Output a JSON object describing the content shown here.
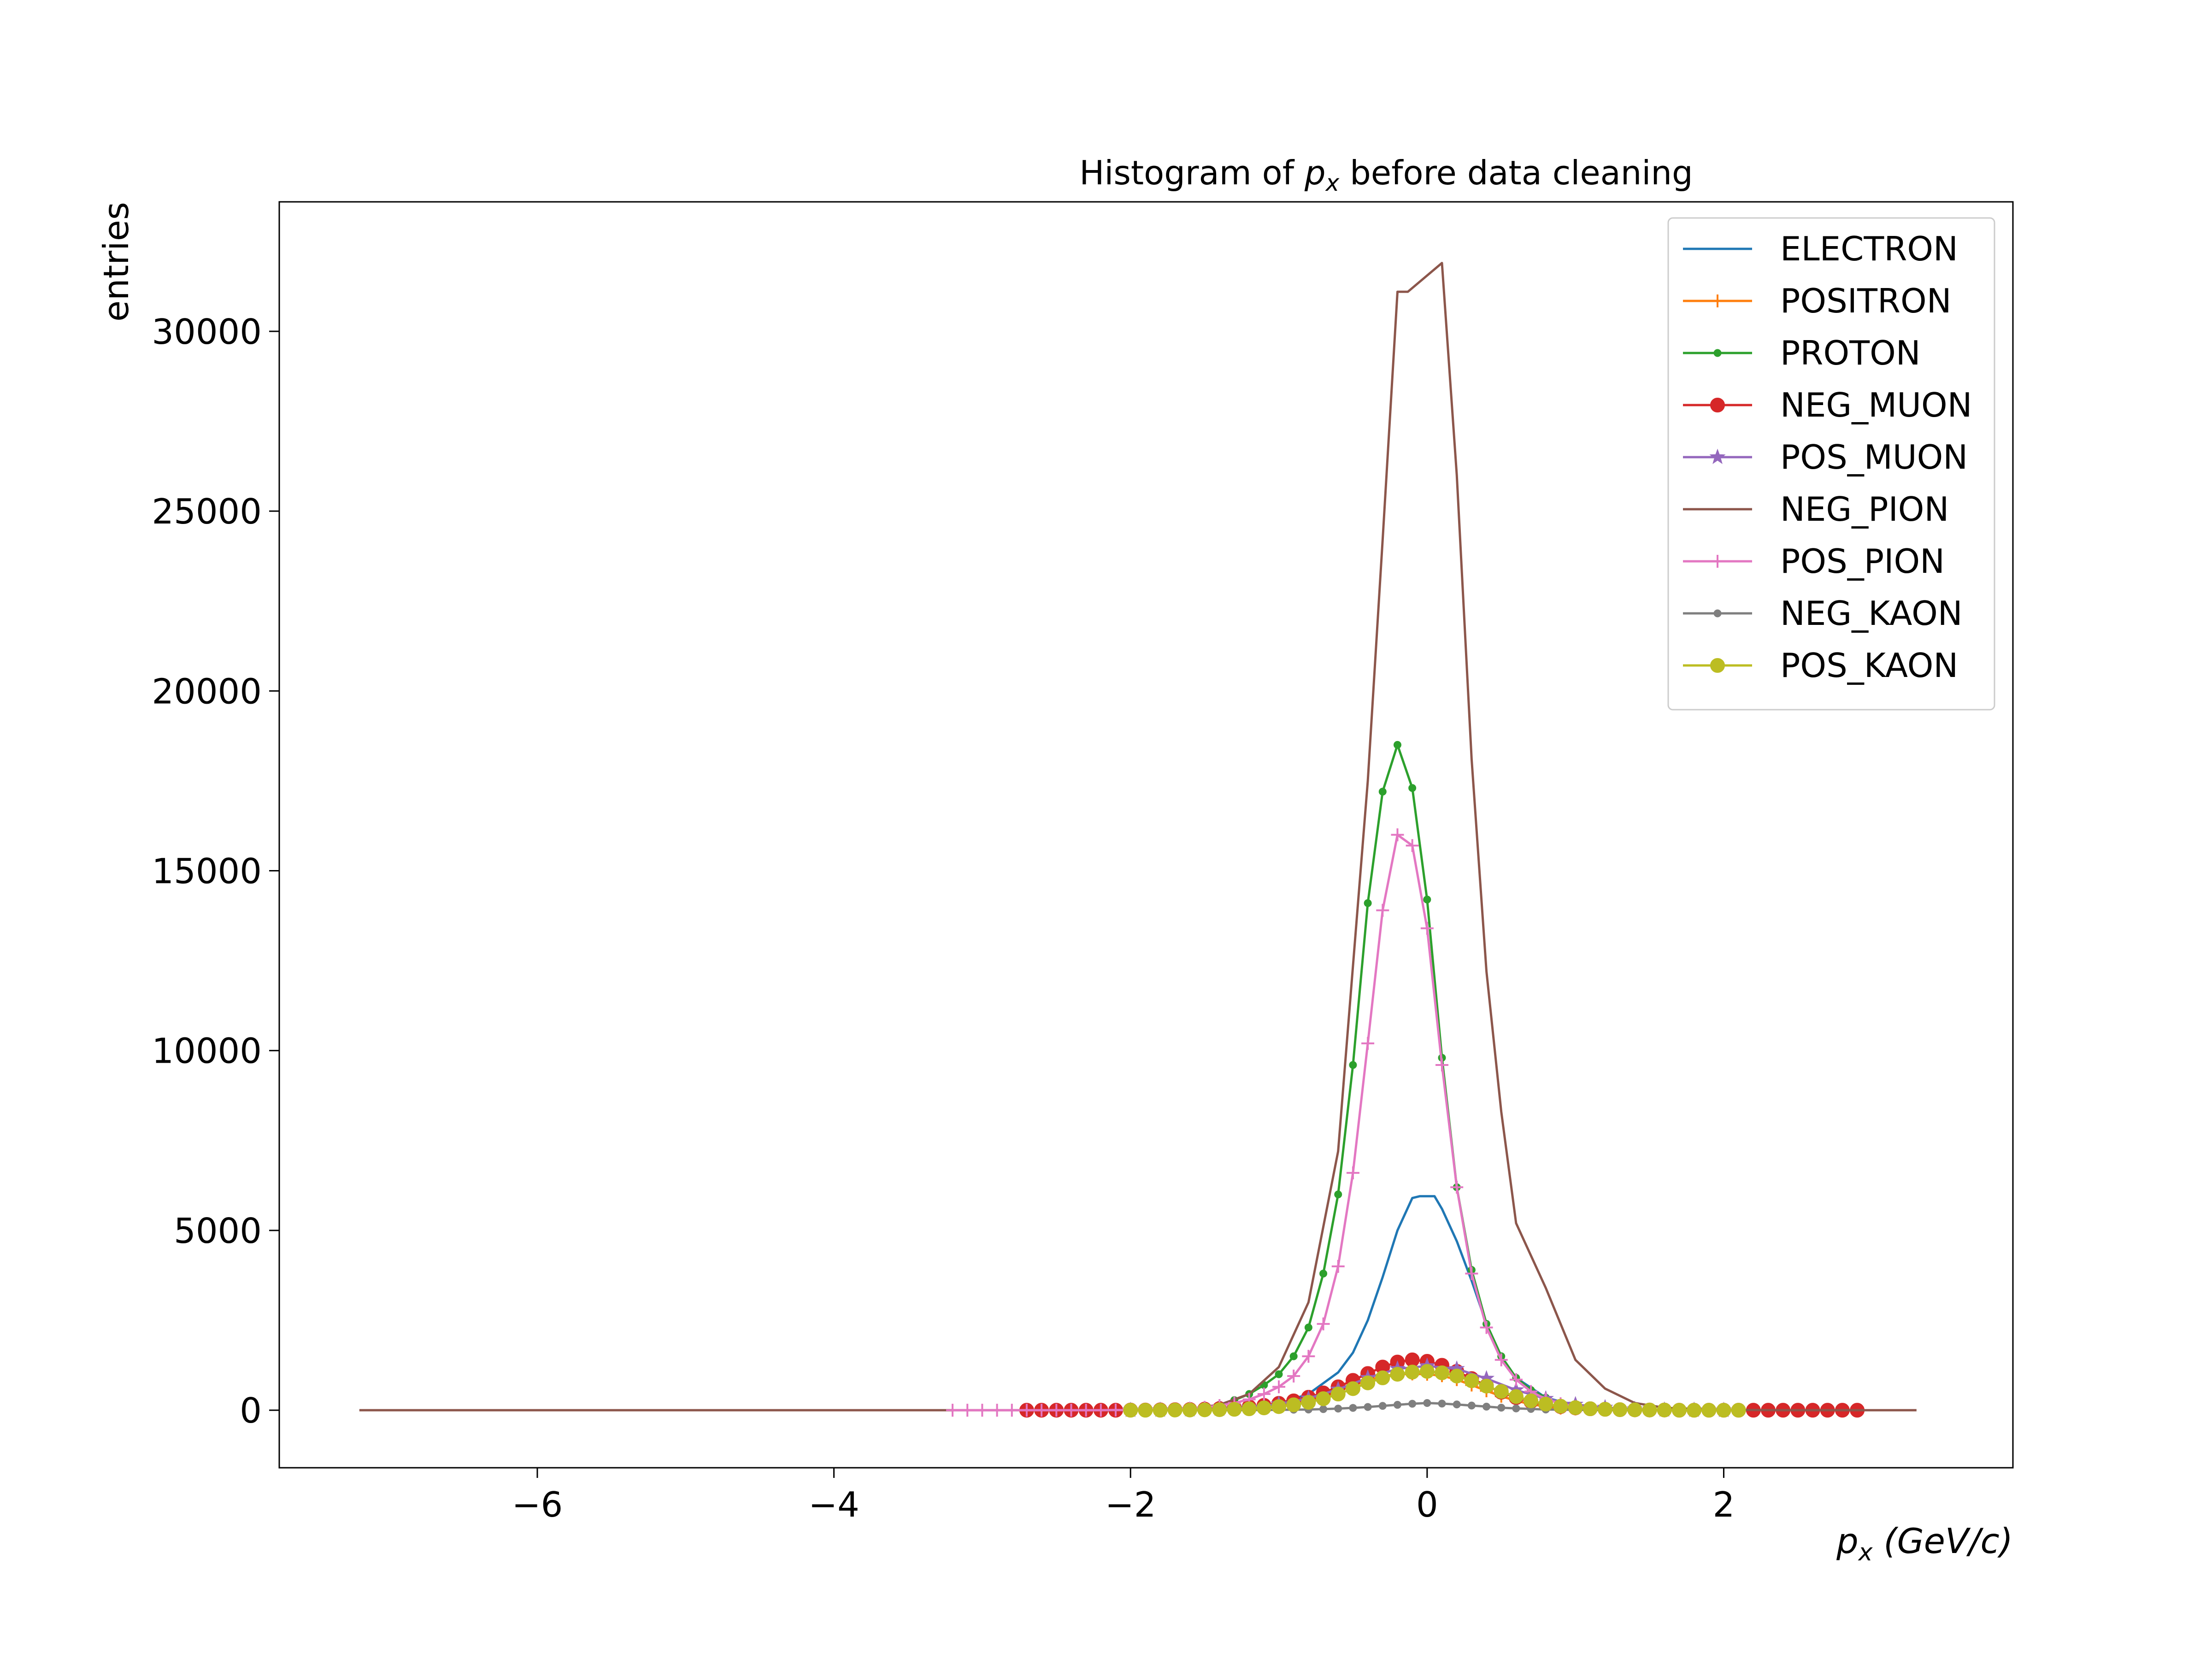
{
  "chart_data": {
    "type": "line",
    "title": {
      "prefix": "Histogram of ",
      "symbol": "p",
      "sub": "x",
      "suffix": " before data cleaning"
    },
    "xlabel": {
      "symbol": "p",
      "sub": "x",
      "unit": " (GeV/c)"
    },
    "ylabel": "entries",
    "xlim": [
      -7.74,
      3.95
    ],
    "ylim": [
      -1600,
      33600
    ],
    "xticks": [
      {
        "value": -6,
        "label": "−6"
      },
      {
        "value": -4,
        "label": "−4"
      },
      {
        "value": -2,
        "label": "−2"
      },
      {
        "value": 0,
        "label": "0"
      },
      {
        "value": 2,
        "label": "2"
      }
    ],
    "yticks": [
      {
        "value": 0,
        "label": "0"
      },
      {
        "value": 5000,
        "label": "5000"
      },
      {
        "value": 10000,
        "label": "10000"
      },
      {
        "value": 15000,
        "label": "15000"
      },
      {
        "value": 20000,
        "label": "20000"
      },
      {
        "value": 25000,
        "label": "25000"
      },
      {
        "value": 30000,
        "label": "30000"
      }
    ],
    "grid": false,
    "legend_position": "top-right",
    "series": [
      {
        "name": "ELECTRON",
        "color": "#1f77b4",
        "marker": "none",
        "x": [
          -2.0,
          -1.8,
          -1.6,
          -1.4,
          -1.2,
          -1.0,
          -0.8,
          -0.6,
          -0.5,
          -0.4,
          -0.3,
          -0.2,
          -0.1,
          -0.05,
          0.05,
          0.1,
          0.2,
          0.3,
          0.4,
          0.5,
          0.6,
          0.8,
          1.0,
          1.2,
          1.4,
          1.6,
          1.8,
          2.0,
          2.2
        ],
        "y": [
          0,
          10,
          20,
          40,
          80,
          180,
          450,
          1050,
          1600,
          2500,
          3700,
          5000,
          5900,
          5950,
          5950,
          5600,
          4700,
          3600,
          2400,
          1500,
          900,
          350,
          130,
          50,
          20,
          10,
          5,
          0,
          0
        ]
      },
      {
        "name": "POSITRON",
        "color": "#ff7f0e",
        "marker": "plus",
        "x": [
          -1.9,
          -1.8,
          -1.7,
          -1.6,
          -1.5,
          -1.4,
          -1.3,
          -1.2,
          -1.1,
          -1.0,
          -0.9,
          -0.8,
          -0.7,
          -0.6,
          -0.5,
          -0.4,
          -0.3,
          -0.2,
          -0.1,
          0.0,
          0.1,
          0.2,
          0.3,
          0.4,
          0.5,
          0.6,
          0.7,
          0.8,
          0.9,
          1.0,
          1.1,
          1.2,
          1.3,
          1.4,
          1.5,
          1.6,
          1.7,
          1.8,
          1.9,
          2.0
        ],
        "y": [
          0,
          0,
          0,
          0,
          5,
          10,
          20,
          40,
          70,
          110,
          170,
          260,
          380,
          530,
          680,
          830,
          950,
          1000,
          1010,
          1000,
          960,
          850,
          700,
          540,
          390,
          260,
          170,
          100,
          60,
          35,
          20,
          10,
          5,
          0,
          0,
          0,
          0,
          0,
          0,
          0
        ]
      },
      {
        "name": "PROTON",
        "color": "#2ca02c",
        "marker": "point",
        "x": [
          -1.8,
          -1.7,
          -1.6,
          -1.5,
          -1.4,
          -1.3,
          -1.2,
          -1.1,
          -1.0,
          -0.9,
          -0.8,
          -0.7,
          -0.6,
          -0.5,
          -0.4,
          -0.3,
          -0.2,
          -0.1,
          0.0,
          0.1,
          0.2,
          0.3,
          0.4,
          0.5,
          0.6,
          0.7,
          0.8,
          0.9,
          1.0,
          1.1,
          1.2,
          1.3,
          1.4,
          1.5,
          1.6,
          1.7,
          1.8
        ],
        "y": [
          10,
          20,
          40,
          80,
          150,
          280,
          450,
          700,
          1000,
          1500,
          2300,
          3800,
          6000,
          9600,
          14100,
          17200,
          18500,
          17300,
          14200,
          9800,
          6200,
          3900,
          2400,
          1500,
          900,
          560,
          350,
          200,
          120,
          70,
          40,
          20,
          10,
          5,
          5,
          0,
          0
        ]
      },
      {
        "name": "NEG_MUON",
        "color": "#d62728",
        "marker": "circle",
        "x": [
          -2.7,
          -2.6,
          -2.5,
          -2.4,
          -2.3,
          -2.2,
          -2.1,
          -2.0,
          -1.9,
          -1.8,
          -1.7,
          -1.6,
          -1.5,
          -1.4,
          -1.3,
          -1.2,
          -1.1,
          -1.0,
          -0.9,
          -0.8,
          -0.7,
          -0.6,
          -0.5,
          -0.4,
          -0.3,
          -0.2,
          -0.1,
          0.0,
          0.1,
          0.2,
          0.3,
          0.4,
          0.5,
          0.6,
          0.7,
          0.8,
          0.9,
          1.0,
          1.1,
          1.2,
          1.3,
          1.4,
          1.5,
          1.6,
          1.7,
          1.8,
          1.9,
          2.0,
          2.1,
          2.2,
          2.3,
          2.4,
          2.5,
          2.6,
          2.7,
          2.8,
          2.9
        ],
        "y": [
          0,
          0,
          0,
          0,
          0,
          0,
          0,
          5,
          5,
          10,
          15,
          20,
          30,
          45,
          65,
          95,
          135,
          190,
          260,
          360,
          480,
          650,
          830,
          1020,
          1200,
          1340,
          1400,
          1360,
          1250,
          1080,
          880,
          680,
          500,
          350,
          240,
          160,
          100,
          65,
          40,
          25,
          15,
          10,
          5,
          5,
          0,
          0,
          0,
          0,
          0,
          0,
          0,
          0,
          0,
          0,
          0,
          0,
          0
        ]
      },
      {
        "name": "POS_MUON",
        "color": "#9467bd",
        "marker": "star",
        "x": [
          -2.0,
          -1.8,
          -1.6,
          -1.4,
          -1.2,
          -1.0,
          -0.8,
          -0.6,
          -0.4,
          -0.2,
          0.0,
          0.2,
          0.4,
          0.6,
          0.8,
          1.0,
          1.2,
          1.4,
          1.6,
          1.8,
          2.0
        ],
        "y": [
          0,
          5,
          15,
          35,
          80,
          170,
          330,
          580,
          900,
          1150,
          1230,
          1150,
          880,
          560,
          320,
          160,
          75,
          30,
          10,
          5,
          0
        ]
      },
      {
        "name": "NEG_PION",
        "color": "#8c564b",
        "marker": "none",
        "x": [
          -7.2,
          -3.0,
          -2.0,
          -1.8,
          -1.6,
          -1.4,
          -1.2,
          -1.0,
          -0.8,
          -0.6,
          -0.4,
          -0.3,
          -0.2,
          -0.13,
          0.1,
          0.2,
          0.3,
          0.4,
          0.5,
          0.6,
          0.8,
          1.0,
          1.2,
          1.4,
          1.6,
          1.8,
          2.0,
          2.4,
          3.3
        ],
        "y": [
          0,
          0,
          0,
          10,
          40,
          150,
          450,
          1200,
          3000,
          7200,
          17500,
          24200,
          31100,
          31100,
          31900,
          26000,
          18100,
          12200,
          8300,
          5200,
          3400,
          1400,
          600,
          200,
          70,
          30,
          10,
          0,
          0
        ]
      },
      {
        "name": "POS_PION",
        "color": "#e377c2",
        "marker": "plus",
        "x": [
          -3.2,
          -3.1,
          -3.0,
          -2.9,
          -2.8,
          -2.7,
          -2.6,
          -2.5,
          -2.4,
          -2.3,
          -2.2,
          -2.1,
          -2.0,
          -1.9,
          -1.8,
          -1.7,
          -1.6,
          -1.5,
          -1.4,
          -1.3,
          -1.2,
          -1.1,
          -1.0,
          -0.9,
          -0.8,
          -0.7,
          -0.6,
          -0.5,
          -0.4,
          -0.3,
          -0.2,
          -0.1,
          0.0,
          0.1,
          0.2,
          0.3,
          0.4,
          0.5,
          0.6,
          0.7,
          0.8,
          0.9,
          1.0,
          1.1,
          1.2,
          1.3,
          1.4,
          1.5,
          1.6,
          1.7,
          1.8,
          1.9,
          2.0
        ],
        "y": [
          0,
          0,
          0,
          0,
          0,
          0,
          0,
          0,
          0,
          0,
          0,
          5,
          5,
          10,
          20,
          30,
          50,
          80,
          130,
          200,
          300,
          450,
          650,
          950,
          1500,
          2400,
          4000,
          6600,
          10200,
          13900,
          16000,
          15700,
          13400,
          9600,
          6200,
          3800,
          2300,
          1400,
          850,
          520,
          310,
          180,
          100,
          60,
          30,
          15,
          10,
          5,
          0,
          0,
          0,
          0,
          0
        ]
      },
      {
        "name": "NEG_KAON",
        "color": "#7f7f7f",
        "marker": "point",
        "x": [
          -2.0,
          -1.9,
          -1.8,
          -1.7,
          -1.6,
          -1.5,
          -1.4,
          -1.3,
          -1.2,
          -1.1,
          -1.0,
          -0.9,
          -0.8,
          -0.7,
          -0.6,
          -0.5,
          -0.4,
          -0.3,
          -0.2,
          -0.1,
          0.0,
          0.1,
          0.2,
          0.3,
          0.4,
          0.5,
          0.6,
          0.7,
          0.8,
          0.9,
          1.0,
          1.1,
          1.2,
          1.3,
          1.4,
          1.5,
          1.6,
          1.7,
          1.8,
          1.9,
          2.0
        ],
        "y": [
          0,
          0,
          0,
          0,
          0,
          0,
          0,
          0,
          5,
          5,
          10,
          15,
          20,
          30,
          45,
          65,
          90,
          120,
          150,
          180,
          200,
          185,
          160,
          130,
          100,
          70,
          50,
          35,
          20,
          15,
          10,
          5,
          5,
          0,
          0,
          0,
          0,
          0,
          0,
          0,
          0
        ]
      },
      {
        "name": "POS_KAON",
        "color": "#bcbd22",
        "marker": "circle",
        "x": [
          -2.0,
          -1.9,
          -1.8,
          -1.7,
          -1.6,
          -1.5,
          -1.4,
          -1.3,
          -1.2,
          -1.1,
          -1.0,
          -0.9,
          -0.8,
          -0.7,
          -0.6,
          -0.5,
          -0.4,
          -0.3,
          -0.2,
          -0.1,
          0.0,
          0.1,
          0.2,
          0.3,
          0.4,
          0.5,
          0.6,
          0.7,
          0.8,
          0.9,
          1.0,
          1.1,
          1.2,
          1.3,
          1.4,
          1.5,
          1.6,
          1.7,
          1.8,
          1.9,
          2.0,
          2.1
        ],
        "y": [
          0,
          0,
          0,
          5,
          5,
          10,
          15,
          25,
          40,
          65,
          100,
          150,
          220,
          320,
          450,
          600,
          760,
          900,
          1000,
          1060,
          1080,
          1040,
          950,
          820,
          670,
          520,
          380,
          260,
          170,
          110,
          70,
          40,
          25,
          15,
          10,
          5,
          5,
          0,
          0,
          0,
          0,
          0
        ]
      }
    ]
  }
}
